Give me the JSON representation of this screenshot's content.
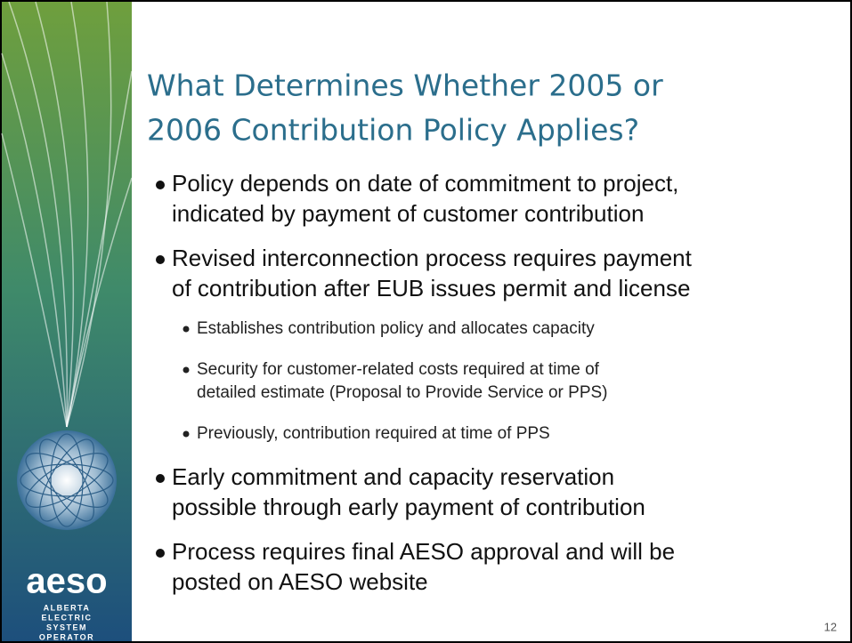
{
  "title": [
    "What Determines Whether 2005 or",
    "2006 Contribution Policy Applies?"
  ],
  "bullets": [
    {
      "lines": [
        "Policy depends on date of commitment to project,",
        "indicated by payment of customer contribution"
      ],
      "sub": []
    },
    {
      "lines": [
        "Revised interconnection process requires payment",
        "of contribution after EUB issues permit and license"
      ],
      "sub": [
        {
          "lines": [
            "Establishes contribution policy and allocates capacity"
          ]
        },
        {
          "lines": [
            "Security for customer-related costs required at time of",
            "detailed estimate (Proposal to Provide Service or PPS)"
          ]
        },
        {
          "lines": [
            "Previously, contribution required at time of PPS"
          ]
        }
      ]
    },
    {
      "lines": [
        "Early commitment and capacity reservation",
        "possible through early payment of contribution"
      ],
      "sub": []
    },
    {
      "lines": [
        "Process requires final AESO approval and will be",
        "posted on AESO website"
      ],
      "sub": []
    }
  ],
  "logo": {
    "name": "aeso",
    "lines": [
      "ALBERTA",
      "ELECTRIC",
      "SYSTEM",
      "OPERATOR"
    ]
  },
  "page_number": "12"
}
